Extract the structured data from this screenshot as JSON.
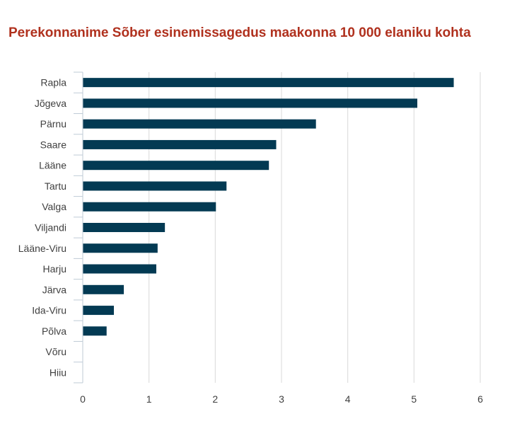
{
  "colors": {
    "title": "#b0311e",
    "bar": "#033a53",
    "grid": "#d9d9d9",
    "axis": "#bfcbd6",
    "text": "#404040"
  },
  "chart_data": {
    "type": "bar",
    "orientation": "horizontal",
    "title": "Perekonnanime Sõber esinemissagedus maakonna 10 000 elaniku kohta",
    "xlabel": "",
    "ylabel": "",
    "categories": [
      "Rapla",
      "Jõgeva",
      "Pärnu",
      "Saare",
      "Lääne",
      "Tartu",
      "Valga",
      "Viljandi",
      "Lääne-Viru",
      "Harju",
      "Järva",
      "Ida-Viru",
      "Põlva",
      "Võru",
      "Hiiu"
    ],
    "values": [
      5.6,
      5.05,
      3.52,
      2.92,
      2.81,
      2.17,
      2.01,
      1.24,
      1.13,
      1.11,
      0.62,
      0.47,
      0.36,
      0,
      0
    ],
    "xlim": [
      0,
      6
    ],
    "xticks": [
      "0",
      "1",
      "2",
      "3",
      "4",
      "5",
      "6"
    ],
    "grid": "vertical",
    "legend": "none"
  }
}
